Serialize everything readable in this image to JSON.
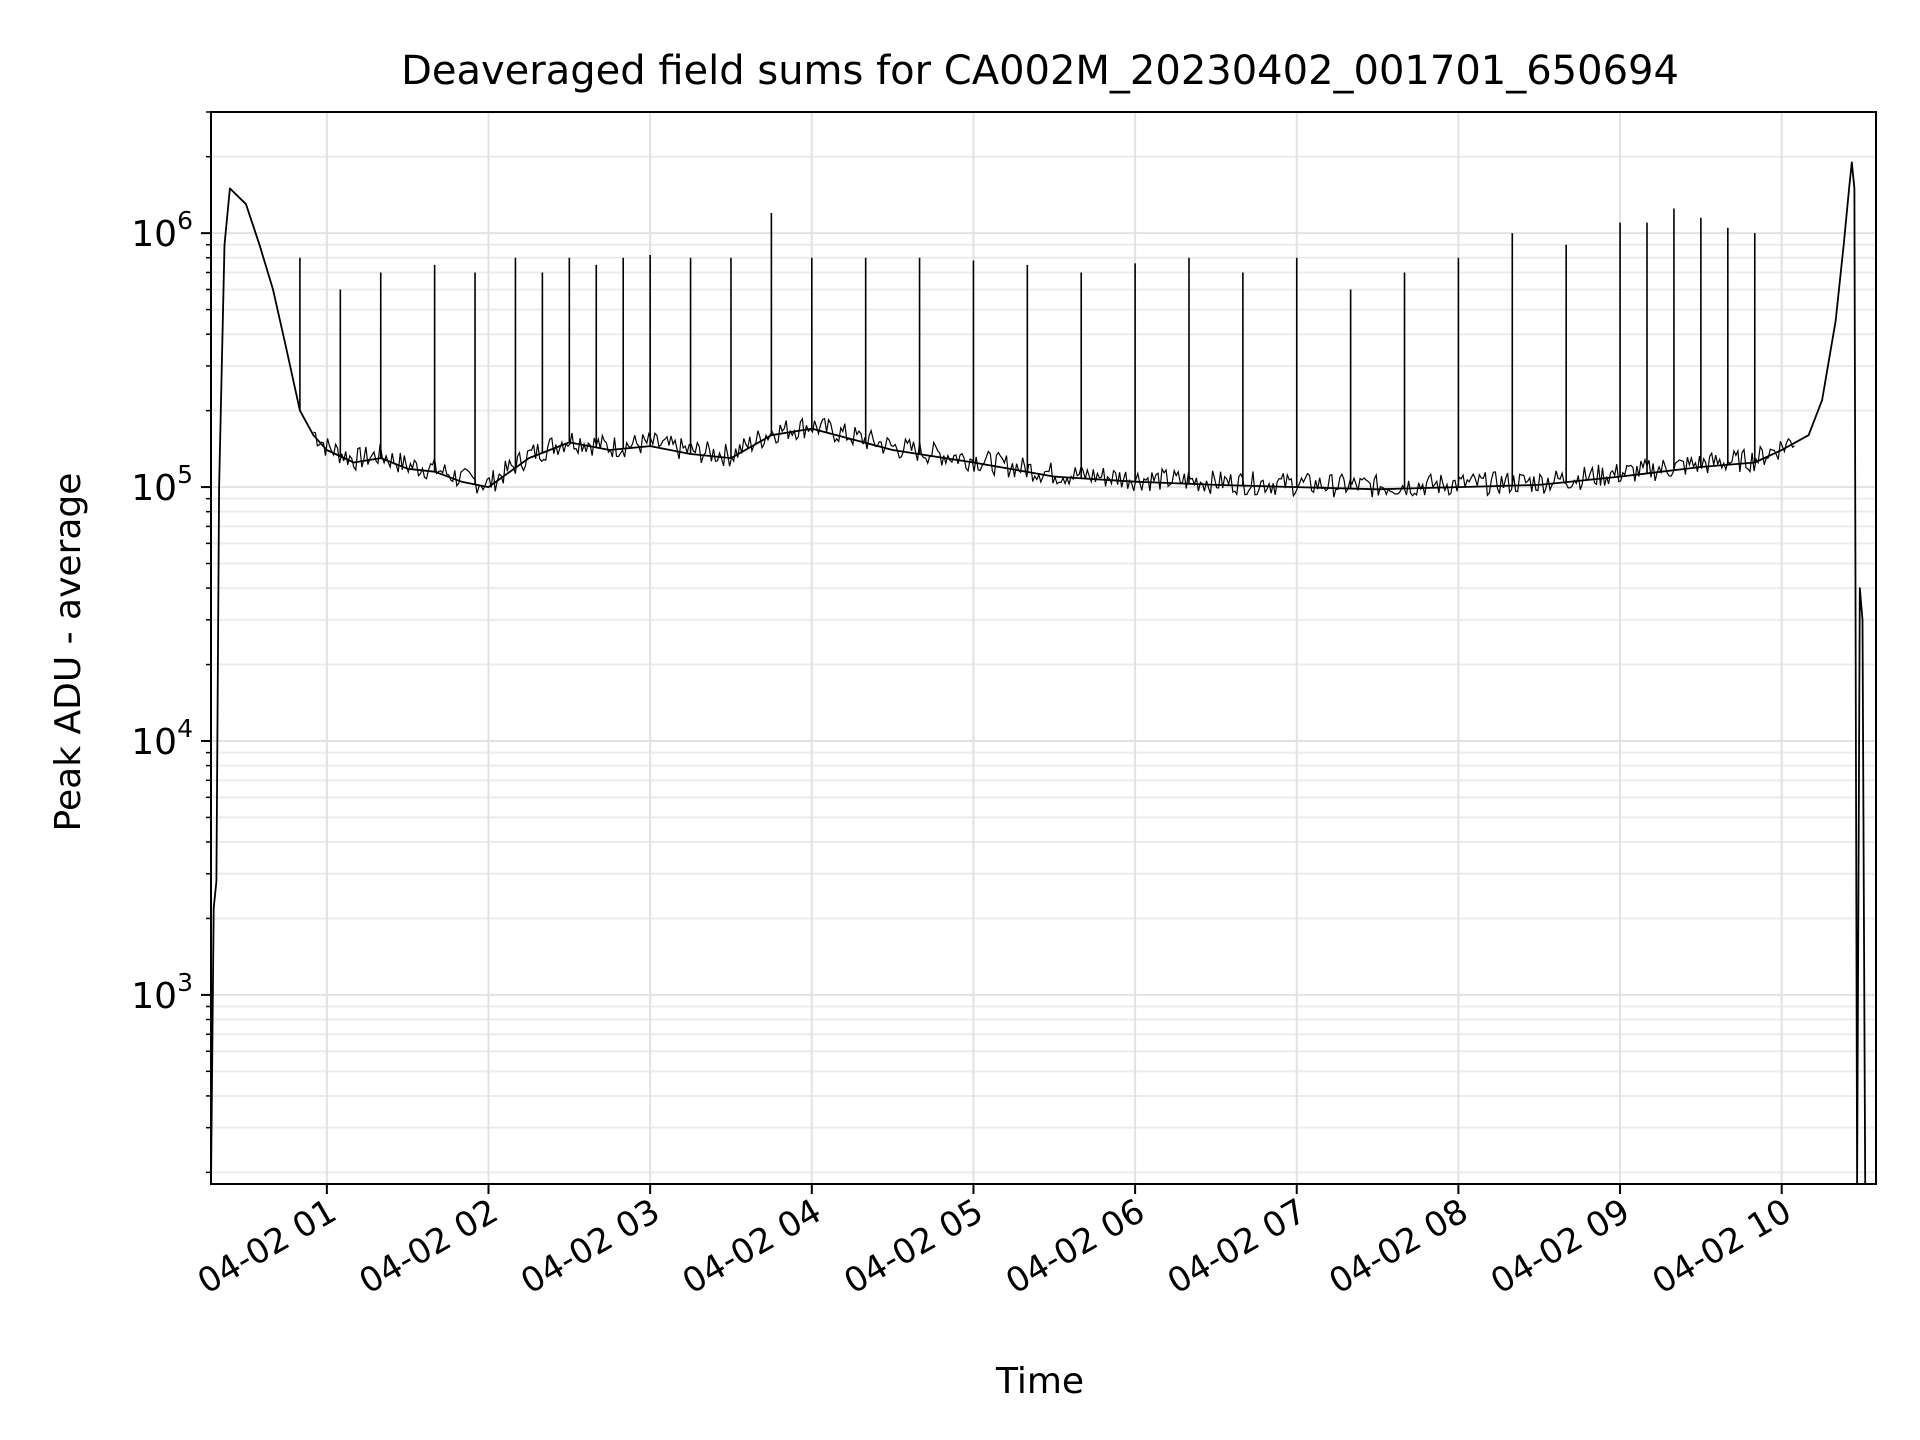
{
  "chart_data": {
    "type": "line",
    "title": "Deaveraged field sums for CA002M_20230402_001701_650694",
    "xlabel": "Time",
    "ylabel": "Peak ADU - average",
    "xaxis_type": "time",
    "yscale": "log",
    "grid": true,
    "legend": false,
    "xlim": [
      "2023-04-02 00:17",
      "2023-04-02 10:35"
    ],
    "ylim": [
      180,
      3000000
    ],
    "x_tick_labels": [
      "04-02 01",
      "04-02 02",
      "04-02 03",
      "04-02 04",
      "04-02 05",
      "04-02 06",
      "04-02 07",
      "04-02 08",
      "04-02 09",
      "04-02 10"
    ],
    "y_ticks": [
      {
        "base": "10",
        "exp": "3",
        "value": 1000
      },
      {
        "base": "10",
        "exp": "4",
        "value": 10000
      },
      {
        "base": "10",
        "exp": "5",
        "value": 100000
      },
      {
        "base": "10",
        "exp": "6",
        "value": 1000000
      }
    ],
    "series": [
      {
        "color": "#000000",
        "x": [
          "2023-04-02 00:17",
          "2023-04-02 00:18",
          "2023-04-02 00:19",
          "2023-04-02 00:20",
          "2023-04-02 00:22",
          "2023-04-02 00:24",
          "2023-04-02 00:30",
          "2023-04-02 00:35",
          "2023-04-02 00:40",
          "2023-04-02 00:45",
          "2023-04-02 00:50",
          "2023-04-02 00:55",
          "2023-04-02 01:00",
          "2023-04-02 01:10",
          "2023-04-02 01:20",
          "2023-04-02 01:30",
          "2023-04-02 01:40",
          "2023-04-02 01:50",
          "2023-04-02 02:00",
          "2023-04-02 02:15",
          "2023-04-02 02:30",
          "2023-04-02 02:45",
          "2023-04-02 03:00",
          "2023-04-02 03:15",
          "2023-04-02 03:30",
          "2023-04-02 03:45",
          "2023-04-02 04:00",
          "2023-04-02 04:30",
          "2023-04-02 05:00",
          "2023-04-02 05:30",
          "2023-04-02 06:00",
          "2023-04-02 06:30",
          "2023-04-02 07:00",
          "2023-04-02 07:30",
          "2023-04-02 08:00",
          "2023-04-02 08:30",
          "2023-04-02 09:00",
          "2023-04-02 09:30",
          "2023-04-02 09:50",
          "2023-04-02 10:00",
          "2023-04-02 10:10",
          "2023-04-02 10:15",
          "2023-04-02 10:20",
          "2023-04-02 10:23",
          "2023-04-02 10:25",
          "2023-04-02 10:26",
          "2023-04-02 10:27",
          "2023-04-02 10:28",
          "2023-04-02 10:29",
          "2023-04-02 10:30",
          "2023-04-02 10:31"
        ],
        "y": [
          180,
          2200,
          2800,
          100000,
          900000,
          1500000,
          1300000,
          900000,
          600000,
          350000,
          200000,
          160000,
          140000,
          125000,
          130000,
          118000,
          115000,
          105000,
          100000,
          130000,
          150000,
          140000,
          145000,
          135000,
          130000,
          160000,
          170000,
          140000,
          125000,
          110000,
          105000,
          102000,
          100000,
          98000,
          100000,
          102000,
          110000,
          120000,
          125000,
          140000,
          160000,
          220000,
          450000,
          900000,
          1500000,
          1900000,
          1500000,
          180,
          40000,
          30000,
          180
        ]
      }
    ],
    "spikes": {
      "x": [
        "2023-04-02 00:50",
        "2023-04-02 01:05",
        "2023-04-02 01:20",
        "2023-04-02 01:40",
        "2023-04-02 01:55",
        "2023-04-02 02:10",
        "2023-04-02 02:20",
        "2023-04-02 02:30",
        "2023-04-02 02:40",
        "2023-04-02 02:50",
        "2023-04-02 03:00",
        "2023-04-02 03:15",
        "2023-04-02 03:30",
        "2023-04-02 03:45",
        "2023-04-02 04:00",
        "2023-04-02 04:20",
        "2023-04-02 04:40",
        "2023-04-02 05:00",
        "2023-04-02 05:20",
        "2023-04-02 05:40",
        "2023-04-02 06:00",
        "2023-04-02 06:20",
        "2023-04-02 06:40",
        "2023-04-02 07:00",
        "2023-04-02 07:20",
        "2023-04-02 07:40",
        "2023-04-02 08:00",
        "2023-04-02 08:20",
        "2023-04-02 08:40",
        "2023-04-02 09:00",
        "2023-04-02 09:10",
        "2023-04-02 09:20",
        "2023-04-02 09:30",
        "2023-04-02 09:40",
        "2023-04-02 09:50"
      ],
      "y": [
        800000,
        600000,
        700000,
        750000,
        700000,
        800000,
        700000,
        800000,
        750000,
        800000,
        820000,
        800000,
        800000,
        1200000,
        800000,
        800000,
        800000,
        780000,
        750000,
        700000,
        760000,
        800000,
        700000,
        800000,
        600000,
        700000,
        800000,
        1000000,
        900000,
        1100000,
        1100000,
        1250000,
        1150000,
        1050000,
        1000000
      ]
    }
  }
}
